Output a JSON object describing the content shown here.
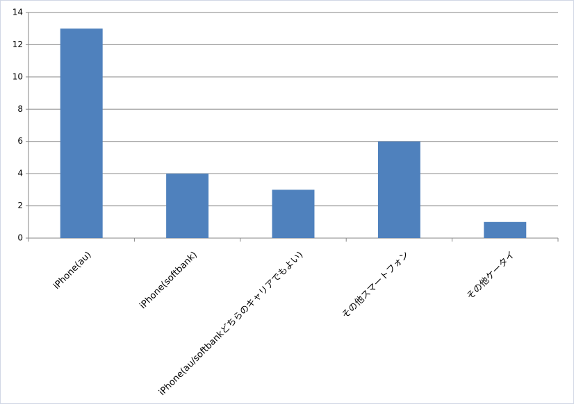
{
  "chart_data": {
    "type": "bar",
    "categories": [
      "iPhone(au)",
      "iPhone(softbank)",
      "iPhone(au/softbankどちらのキャリアでもよい)",
      "その他スマートフォン",
      "その他ケータイ"
    ],
    "values": [
      13,
      4,
      3,
      6,
      1
    ],
    "color": "#4f81bd",
    "ylim": [
      0,
      14
    ],
    "yticks": [
      0,
      2,
      4,
      6,
      8,
      10,
      12,
      14
    ],
    "grid": true
  }
}
